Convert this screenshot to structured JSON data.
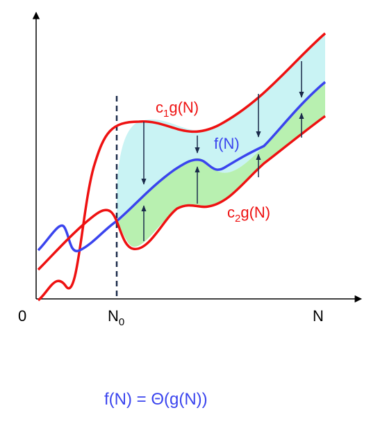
{
  "labels": {
    "origin": "0",
    "x_axis": "N",
    "n0_main": "N",
    "n0_sub": "0",
    "upper_main": "c",
    "upper_sub": "1",
    "upper_tail": "g(N)",
    "middle": "f(N)",
    "lower_main": "c",
    "lower_sub": "2",
    "lower_tail": "g(N)",
    "caption": "f(N) = Θ(g(N))"
  },
  "colors": {
    "upper_curve": "#ee1111",
    "lower_curve": "#ee1111",
    "middle_curve": "#3a44ee",
    "upper_band_fill": "#c9f3f4",
    "lower_band_fill": "#b8f0b0",
    "axis": "#000000",
    "threshold_line": "#1a2a4a",
    "arrow": "#1a2a4a",
    "label_red": "#ee1111",
    "label_blue": "#3a44ee",
    "text_black": "#000000"
  }
}
